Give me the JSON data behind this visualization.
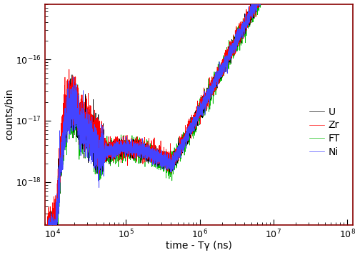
{
  "title": "",
  "xlabel": "time - Tγ (ns)",
  "ylabel": "counts/bin",
  "xlim": [
    8000,
    120000000.0
  ],
  "ylim": [
    2e-19,
    8e-16
  ],
  "series": {
    "U": {
      "color": "#000000",
      "lw": 0.5,
      "zorder": 3
    },
    "Zr": {
      "color": "#ff0000",
      "lw": 0.5,
      "zorder": 4
    },
    "FT": {
      "color": "#00bb00",
      "lw": 0.5,
      "zorder": 2
    },
    "Ni": {
      "color": "#4444ff",
      "lw": 0.5,
      "zorder": 5
    }
  },
  "legend_fontsize": 10,
  "border_color": "#880000",
  "background": "#ffffff",
  "tick_fontsize": 9,
  "label_fontsize": 10
}
